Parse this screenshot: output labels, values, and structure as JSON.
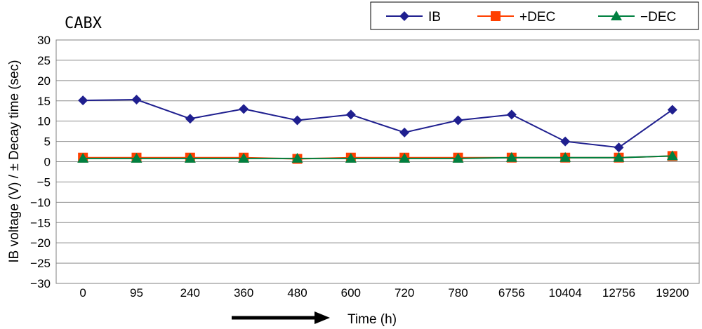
{
  "chart_data": {
    "type": "line",
    "title": "CABX",
    "xlabel": "Time (h)",
    "ylabel": "IB voltage (V)  / ± Decay time (sec)",
    "categories": [
      "0",
      "95",
      "240",
      "360",
      "480",
      "600",
      "720",
      "780",
      "6756",
      "10404",
      "12756",
      "19200"
    ],
    "ylim": [
      -30,
      30
    ],
    "ytick_step": 5,
    "grid": true,
    "legend_position": "top-right",
    "series": [
      {
        "name": "IB",
        "marker": "diamond",
        "color": "#1f1f8f",
        "values": [
          15.1,
          15.3,
          10.6,
          13.0,
          10.2,
          11.6,
          7.2,
          10.2,
          11.6,
          5.0,
          3.5,
          12.8
        ]
      },
      {
        "name": "+DEC",
        "marker": "square",
        "color": "#ff4000",
        "values": [
          1.0,
          1.0,
          1.0,
          1.0,
          0.7,
          1.0,
          1.0,
          1.0,
          1.0,
          1.0,
          1.0,
          1.4
        ]
      },
      {
        "name": "−DEC",
        "marker": "triangle",
        "color": "#008040",
        "values": [
          0.8,
          0.8,
          0.8,
          0.8,
          0.8,
          0.8,
          0.8,
          0.8,
          1.0,
          1.0,
          1.0,
          1.4
        ]
      }
    ]
  }
}
